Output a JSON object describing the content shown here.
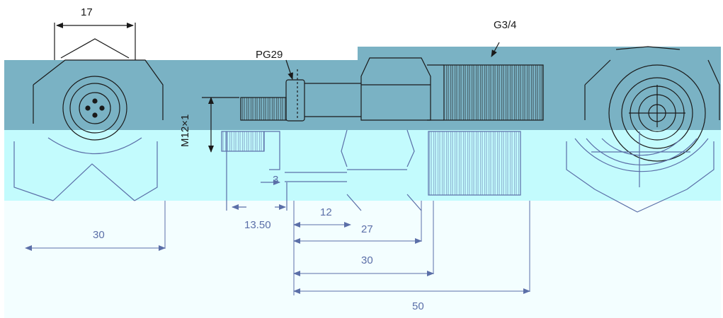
{
  "drawing": {
    "dim_top_width": "17",
    "label_port": "PG29",
    "label_thread_g": "G3/4",
    "label_thread_m": "M12×1",
    "dim_thread_len": "3",
    "dim_13_50": "13.50",
    "dim_12": "12",
    "dim_27": "27",
    "dim_30_left": "30",
    "dim_30_right": "30",
    "dim_50": "50"
  },
  "colors": {
    "band_dark": "#7ab2c4",
    "band_light": "#c3fbfd",
    "band_pale": "#f3feff",
    "line_dark": "#1a1a1a",
    "line_blue": "#5b6fa8"
  }
}
